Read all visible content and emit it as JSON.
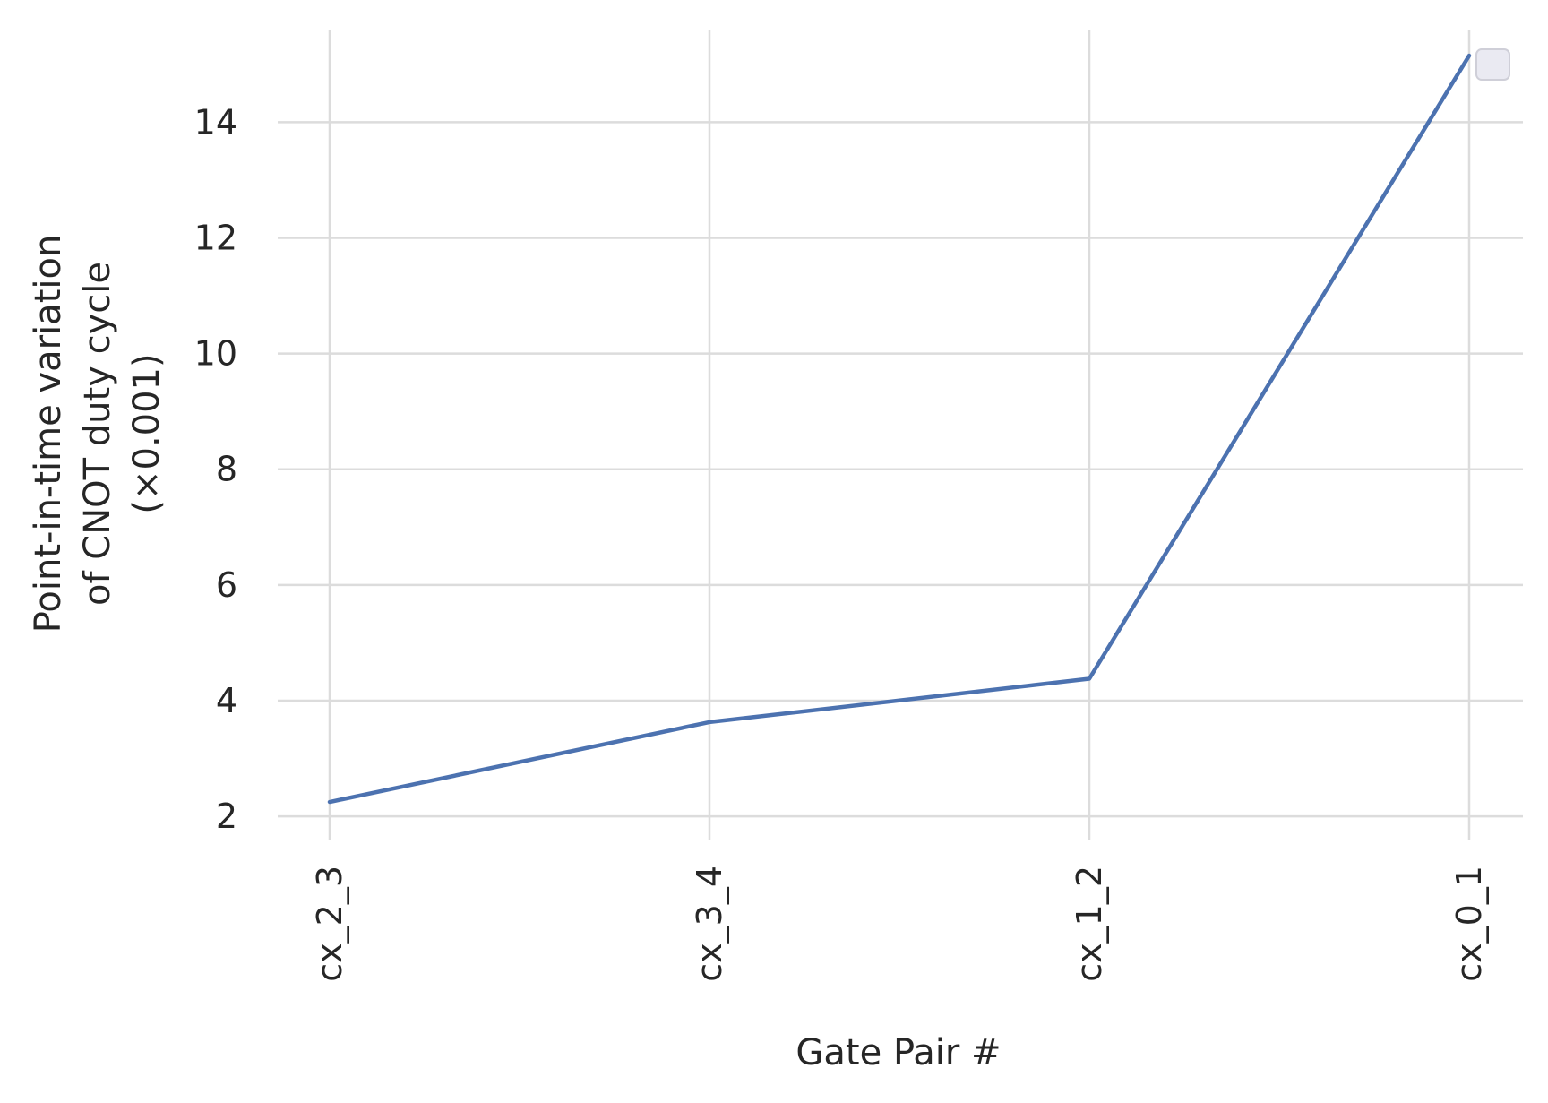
{
  "chart_data": {
    "type": "line",
    "title": "",
    "xlabel": "Gate Pair #",
    "ylabel_lines": [
      "Point-in-time variation",
      "of CNOT duty cycle",
      "(×0.001)"
    ],
    "categories": [
      "cx_2_3",
      "cx_3_4",
      "cx_1_2",
      "cx_0_1"
    ],
    "series": [
      {
        "values": [
          2.25,
          3.63,
          4.38,
          15.15
        ],
        "color": "#4c72b0"
      }
    ],
    "ylim": [
      1.6,
      15.6
    ],
    "yticks": [
      2,
      4,
      6,
      8,
      10,
      12,
      14
    ],
    "ytick_labels": [
      "2",
      "4",
      "6",
      "8",
      "10",
      "12",
      "14"
    ],
    "grid": true,
    "legend": {
      "placement": "top-right",
      "entries": []
    }
  }
}
